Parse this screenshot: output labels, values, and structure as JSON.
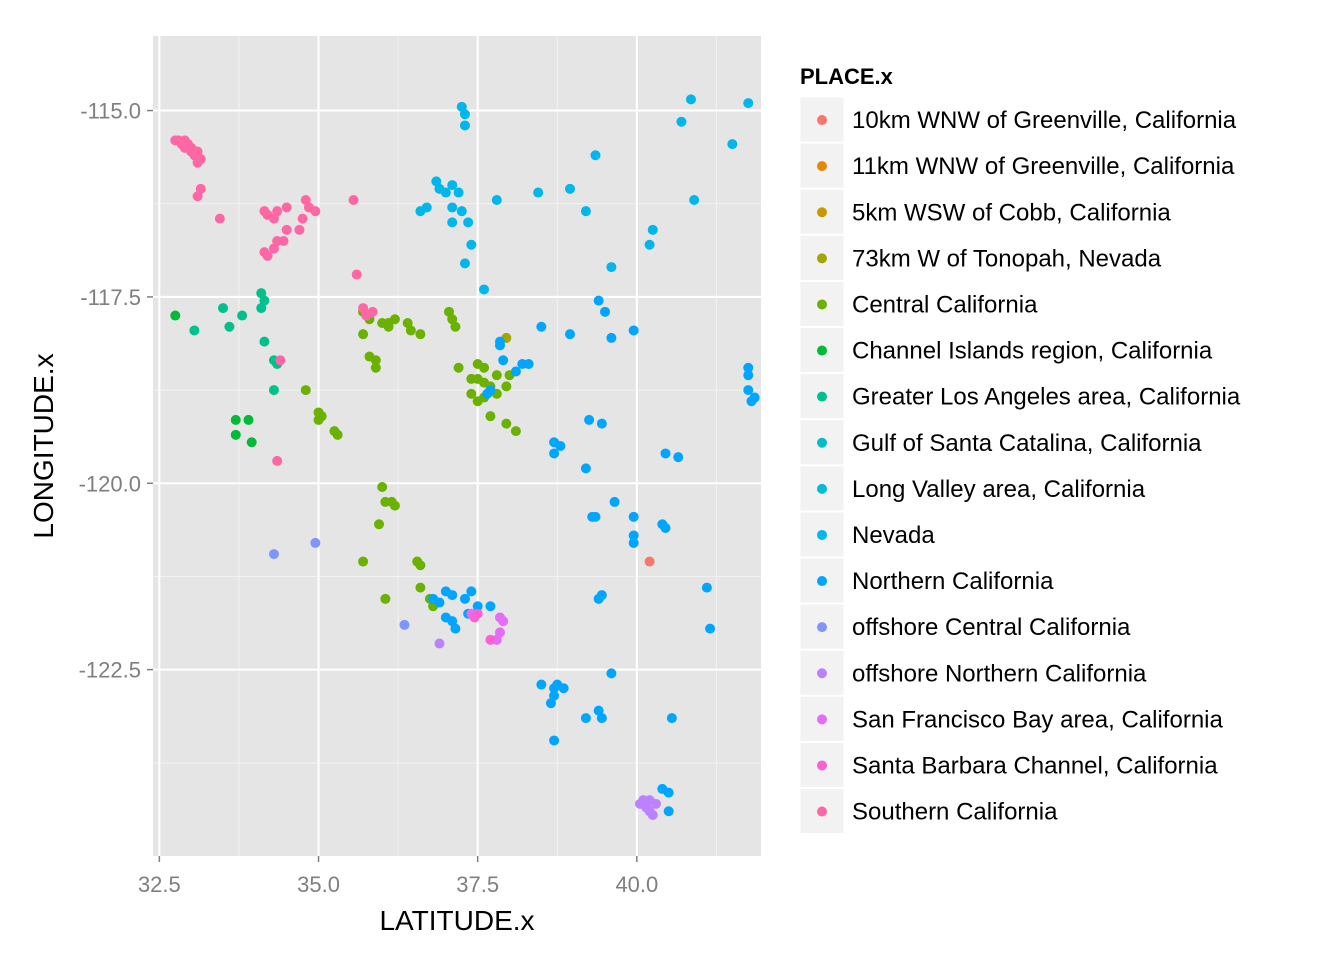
{
  "chart_data": {
    "type": "scatter",
    "xlabel": "LATITUDE.x",
    "ylabel": "LONGITUDE.x",
    "xlim": [
      32.4,
      41.95
    ],
    "ylim": [
      -125.0,
      -114.0
    ],
    "x_ticks": [
      32.5,
      35.0,
      37.5,
      40.0
    ],
    "x_tick_labels": [
      "32.5",
      "35.0",
      "37.5",
      "40.0"
    ],
    "y_ticks": [
      -115.0,
      -117.5,
      -120.0,
      -122.5
    ],
    "y_tick_labels": [
      "-115.0",
      "-117.5",
      "-120.0",
      "-122.5"
    ],
    "grid": true,
    "legend_position": "right",
    "legend_title": "PLACE.x",
    "series": [
      {
        "name": "10km WNW of Greenville, California",
        "color": "#F8766D",
        "points": [
          [
            40.2,
            -121.05
          ]
        ]
      },
      {
        "name": "11km WNW of Greenville, California",
        "color": "#E58700",
        "points": []
      },
      {
        "name": "5km WSW of Cobb, California",
        "color": "#C99800",
        "points": []
      },
      {
        "name": "73km W of Tonopah, Nevada",
        "color": "#A3A500",
        "points": [
          [
            37.95,
            -118.05
          ]
        ]
      },
      {
        "name": "Central California",
        "color": "#6BB100",
        "points": [
          [
            35.7,
            -117.7
          ],
          [
            35.8,
            -117.8
          ],
          [
            36.0,
            -117.85
          ],
          [
            36.1,
            -117.85
          ],
          [
            36.2,
            -117.8
          ],
          [
            36.4,
            -117.85
          ],
          [
            36.45,
            -117.95
          ],
          [
            36.6,
            -118.0
          ],
          [
            35.7,
            -118.0
          ],
          [
            36.1,
            -117.9
          ],
          [
            37.05,
            -117.7
          ],
          [
            37.1,
            -117.8
          ],
          [
            37.15,
            -117.9
          ],
          [
            37.2,
            -118.45
          ],
          [
            37.5,
            -118.4
          ],
          [
            37.6,
            -118.45
          ],
          [
            37.4,
            -118.6
          ],
          [
            37.5,
            -118.6
          ],
          [
            37.6,
            -118.65
          ],
          [
            37.4,
            -118.8
          ],
          [
            37.5,
            -118.9
          ],
          [
            37.6,
            -118.85
          ],
          [
            37.7,
            -118.7
          ],
          [
            37.8,
            -118.55
          ],
          [
            37.8,
            -118.8
          ],
          [
            37.95,
            -118.7
          ],
          [
            38.0,
            -118.55
          ],
          [
            37.7,
            -119.1
          ],
          [
            37.95,
            -119.2
          ],
          [
            38.1,
            -119.3
          ],
          [
            35.8,
            -118.3
          ],
          [
            35.9,
            -118.35
          ],
          [
            35.9,
            -118.45
          ],
          [
            34.8,
            -118.75
          ],
          [
            35.0,
            -119.05
          ],
          [
            35.0,
            -119.15
          ],
          [
            35.05,
            -119.1
          ],
          [
            35.25,
            -119.3
          ],
          [
            35.3,
            -119.35
          ],
          [
            36.0,
            -120.05
          ],
          [
            36.05,
            -120.25
          ],
          [
            36.15,
            -120.25
          ],
          [
            36.2,
            -120.3
          ],
          [
            35.95,
            -120.55
          ],
          [
            35.7,
            -121.05
          ],
          [
            36.55,
            -121.05
          ],
          [
            36.6,
            -121.1
          ],
          [
            36.6,
            -121.4
          ],
          [
            36.75,
            -121.55
          ],
          [
            36.8,
            -121.65
          ],
          [
            36.05,
            -121.55
          ]
        ]
      },
      {
        "name": "Channel Islands region, California",
        "color": "#00BA38",
        "points": [
          [
            32.75,
            -117.75
          ],
          [
            33.7,
            -119.15
          ],
          [
            33.9,
            -119.15
          ],
          [
            33.7,
            -119.35
          ],
          [
            33.95,
            -119.45
          ]
        ]
      },
      {
        "name": "Greater Los Angeles area, California",
        "color": "#00C08B",
        "points": [
          [
            33.05,
            -117.95
          ],
          [
            33.5,
            -117.65
          ],
          [
            33.6,
            -117.9
          ],
          [
            33.8,
            -117.75
          ],
          [
            34.1,
            -117.45
          ],
          [
            34.15,
            -117.55
          ],
          [
            34.1,
            -117.65
          ],
          [
            34.15,
            -118.1
          ],
          [
            34.3,
            -118.35
          ],
          [
            34.35,
            -118.4
          ],
          [
            34.3,
            -118.75
          ]
        ]
      },
      {
        "name": "Gulf of Santa Catalina, California",
        "color": "#00BFC4",
        "points": []
      },
      {
        "name": "Long Valley area, California",
        "color": "#00BCD8",
        "points": []
      },
      {
        "name": "Nevada",
        "color": "#00B6EB",
        "points": [
          [
            37.25,
            -114.95
          ],
          [
            37.3,
            -115.05
          ],
          [
            37.3,
            -115.2
          ],
          [
            36.85,
            -115.95
          ],
          [
            36.9,
            -116.05
          ],
          [
            37.0,
            -116.1
          ],
          [
            37.1,
            -116.0
          ],
          [
            37.2,
            -116.1
          ],
          [
            36.6,
            -116.35
          ],
          [
            36.7,
            -116.3
          ],
          [
            37.1,
            -116.3
          ],
          [
            37.25,
            -116.35
          ],
          [
            37.35,
            -116.5
          ],
          [
            37.1,
            -116.5
          ],
          [
            37.4,
            -116.8
          ],
          [
            37.3,
            -117.05
          ],
          [
            37.6,
            -117.4
          ],
          [
            37.8,
            -116.2
          ],
          [
            38.45,
            -116.1
          ],
          [
            38.95,
            -116.05
          ],
          [
            39.2,
            -116.35
          ],
          [
            39.35,
            -115.6
          ],
          [
            39.6,
            -117.1
          ],
          [
            40.2,
            -116.8
          ],
          [
            40.25,
            -116.6
          ],
          [
            40.7,
            -115.15
          ],
          [
            40.85,
            -114.85
          ],
          [
            40.9,
            -116.2
          ],
          [
            41.5,
            -115.45
          ],
          [
            41.75,
            -114.9
          ]
        ]
      },
      {
        "name": "Northern California",
        "color": "#00A5FF",
        "points": [
          [
            37.85,
            -118.1
          ],
          [
            37.85,
            -118.15
          ],
          [
            37.9,
            -118.35
          ],
          [
            38.1,
            -118.5
          ],
          [
            38.2,
            -118.4
          ],
          [
            38.3,
            -118.4
          ],
          [
            37.7,
            -118.75
          ],
          [
            37.65,
            -118.8
          ],
          [
            38.5,
            -117.9
          ],
          [
            38.95,
            -118.0
          ],
          [
            39.4,
            -117.55
          ],
          [
            39.5,
            -117.7
          ],
          [
            39.6,
            -118.05
          ],
          [
            39.95,
            -117.95
          ],
          [
            38.7,
            -119.45
          ],
          [
            38.7,
            -119.6
          ],
          [
            38.8,
            -119.5
          ],
          [
            39.25,
            -119.15
          ],
          [
            39.45,
            -119.2
          ],
          [
            39.2,
            -119.8
          ],
          [
            39.35,
            -120.45
          ],
          [
            39.3,
            -120.45
          ],
          [
            39.65,
            -120.25
          ],
          [
            39.95,
            -120.45
          ],
          [
            39.95,
            -120.7
          ],
          [
            39.95,
            -120.8
          ],
          [
            40.45,
            -119.6
          ],
          [
            40.65,
            -119.65
          ],
          [
            40.4,
            -120.55
          ],
          [
            40.45,
            -120.6
          ],
          [
            41.75,
            -118.45
          ],
          [
            41.75,
            -118.55
          ],
          [
            41.75,
            -118.75
          ],
          [
            41.85,
            -118.85
          ],
          [
            41.8,
            -118.9
          ],
          [
            39.45,
            -121.5
          ],
          [
            39.4,
            -121.55
          ],
          [
            39.6,
            -122.55
          ],
          [
            38.5,
            -122.7
          ],
          [
            38.7,
            -122.75
          ],
          [
            38.75,
            -122.7
          ],
          [
            38.85,
            -122.75
          ],
          [
            38.7,
            -122.85
          ],
          [
            38.65,
            -122.95
          ],
          [
            39.2,
            -123.15
          ],
          [
            39.4,
            -123.05
          ],
          [
            39.45,
            -123.15
          ],
          [
            40.55,
            -123.15
          ],
          [
            38.7,
            -123.45
          ],
          [
            40.4,
            -124.1
          ],
          [
            40.5,
            -124.15
          ],
          [
            40.5,
            -124.4
          ],
          [
            41.1,
            -121.4
          ],
          [
            41.15,
            -121.95
          ],
          [
            36.8,
            -121.55
          ],
          [
            36.9,
            -121.6
          ],
          [
            37.0,
            -121.45
          ],
          [
            37.1,
            -121.5
          ],
          [
            37.0,
            -121.8
          ],
          [
            37.1,
            -121.85
          ],
          [
            37.15,
            -121.95
          ],
          [
            37.3,
            -121.55
          ],
          [
            37.4,
            -121.45
          ],
          [
            37.5,
            -121.65
          ],
          [
            37.7,
            -121.65
          ],
          [
            37.35,
            -121.75
          ]
        ]
      },
      {
        "name": "offshore Central California",
        "color": "#7F96FF",
        "points": [
          [
            34.3,
            -120.95
          ],
          [
            34.95,
            -120.8
          ],
          [
            36.35,
            -121.9
          ]
        ]
      },
      {
        "name": "offshore Northern California",
        "color": "#BC81FF",
        "points": [
          [
            36.9,
            -122.15
          ],
          [
            40.05,
            -124.3
          ],
          [
            40.15,
            -124.35
          ],
          [
            40.2,
            -124.4
          ],
          [
            40.25,
            -124.45
          ],
          [
            40.3,
            -124.3
          ],
          [
            40.1,
            -124.25
          ],
          [
            40.2,
            -124.25
          ]
        ]
      },
      {
        "name": "San Francisco Bay area, California",
        "color": "#E36EF6",
        "points": [
          [
            37.4,
            -121.75
          ],
          [
            37.85,
            -121.8
          ],
          [
            37.9,
            -121.85
          ],
          [
            37.85,
            -122.0
          ],
          [
            37.8,
            -122.1
          ]
        ]
      },
      {
        "name": "Santa Barbara Channel, California",
        "color": "#FD61D1",
        "points": [
          [
            37.7,
            -122.1
          ],
          [
            37.5,
            -121.75
          ],
          [
            37.45,
            -121.8
          ]
        ]
      },
      {
        "name": "Southern California",
        "color": "#FF67A4",
        "points": [
          [
            32.75,
            -115.4
          ],
          [
            32.8,
            -115.4
          ],
          [
            32.85,
            -115.45
          ],
          [
            32.9,
            -115.5
          ],
          [
            32.95,
            -115.45
          ],
          [
            33.0,
            -115.55
          ],
          [
            33.05,
            -115.6
          ],
          [
            33.1,
            -115.55
          ],
          [
            33.15,
            -115.65
          ],
          [
            32.9,
            -115.4
          ],
          [
            33.0,
            -115.5
          ],
          [
            33.1,
            -115.7
          ],
          [
            33.15,
            -116.05
          ],
          [
            33.1,
            -116.15
          ],
          [
            33.45,
            -116.45
          ],
          [
            34.15,
            -116.35
          ],
          [
            34.2,
            -116.4
          ],
          [
            34.3,
            -116.45
          ],
          [
            34.35,
            -116.35
          ],
          [
            34.5,
            -116.3
          ],
          [
            34.8,
            -116.2
          ],
          [
            34.85,
            -116.3
          ],
          [
            34.95,
            -116.35
          ],
          [
            34.75,
            -116.45
          ],
          [
            34.7,
            -116.6
          ],
          [
            34.5,
            -116.6
          ],
          [
            34.45,
            -116.75
          ],
          [
            34.35,
            -116.75
          ],
          [
            34.3,
            -116.85
          ],
          [
            34.2,
            -116.95
          ],
          [
            34.15,
            -116.9
          ],
          [
            35.55,
            -116.2
          ],
          [
            35.6,
            -117.2
          ],
          [
            35.7,
            -117.65
          ],
          [
            35.75,
            -117.75
          ],
          [
            35.85,
            -117.7
          ],
          [
            34.35,
            -119.7
          ],
          [
            34.4,
            -118.35
          ]
        ]
      }
    ]
  }
}
